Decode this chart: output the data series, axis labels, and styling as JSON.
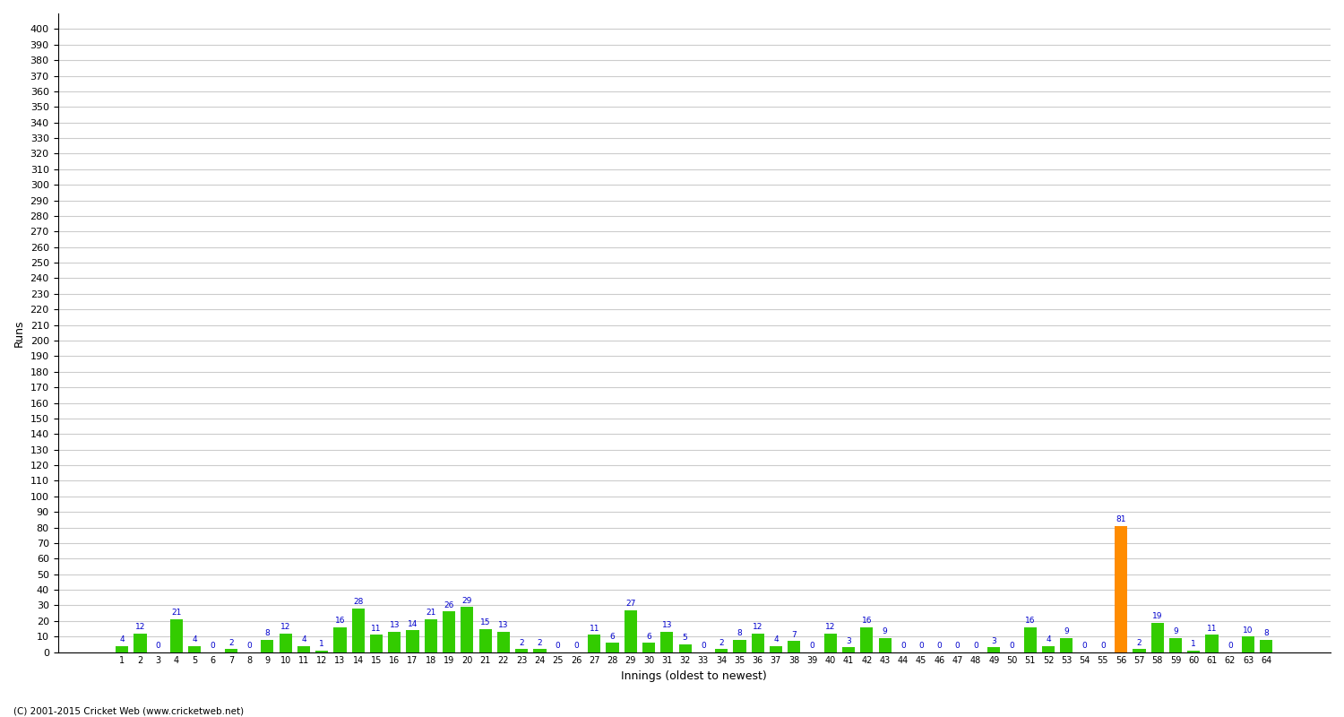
{
  "xlabel": "Innings (oldest to newest)",
  "ylabel": "Runs",
  "scores": [
    4,
    12,
    0,
    21,
    4,
    0,
    2,
    0,
    8,
    12,
    4,
    1,
    16,
    28,
    11,
    13,
    14,
    21,
    26,
    29,
    15,
    13,
    2,
    2,
    0,
    0,
    11,
    6,
    27,
    6,
    13,
    5,
    0,
    2,
    8,
    12,
    4,
    7,
    0,
    12,
    3,
    16,
    9,
    0,
    0,
    0,
    0,
    0,
    3,
    0,
    16,
    4,
    9,
    0,
    0,
    81,
    2,
    19,
    9,
    1,
    11,
    0,
    10,
    8
  ],
  "innings_labels": [
    "1",
    "2",
    "3",
    "4",
    "5",
    "6",
    "7",
    "8",
    "9",
    "10",
    "11",
    "12",
    "13",
    "14",
    "15",
    "16",
    "17",
    "18",
    "19",
    "20",
    "21",
    "22",
    "23",
    "24",
    "25",
    "26",
    "27",
    "28",
    "29",
    "30",
    "31",
    "32",
    "33",
    "34",
    "35",
    "36",
    "37",
    "38",
    "39",
    "40",
    "41",
    "42",
    "43",
    "44",
    "45",
    "46",
    "47",
    "48",
    "49",
    "50",
    "51",
    "52",
    "53",
    "54",
    "55",
    "56",
    "57",
    "58",
    "59",
    "60",
    "61",
    "62",
    "63",
    "64"
  ],
  "highlight_index": 55,
  "bar_color": "#33cc00",
  "highlight_color": "#ff8c00",
  "label_color": "#0000cc",
  "background_color": "#ffffff",
  "grid_color": "#cccccc",
  "yticks": [
    0,
    10,
    20,
    30,
    40,
    50,
    60,
    70,
    80,
    90,
    100,
    110,
    120,
    130,
    140,
    150,
    160,
    170,
    180,
    190,
    200,
    210,
    220,
    230,
    240,
    250,
    260,
    270,
    280,
    290,
    300,
    310,
    320,
    330,
    340,
    350,
    360,
    370,
    380,
    390,
    400
  ],
  "ylim": [
    0,
    410
  ],
  "footer": "(C) 2001-2015 Cricket Web (www.cricketweb.net)"
}
